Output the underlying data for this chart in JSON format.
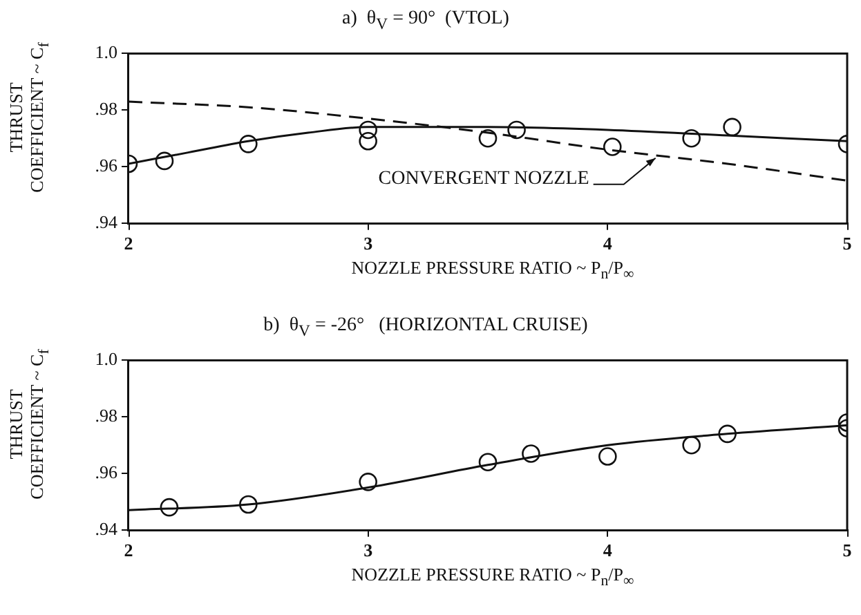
{
  "chart_data": [
    {
      "type": "scatter",
      "title": "a)  θ$_{V}$ = 90°  (VTOL)",
      "xlabel": "NOZZLE PRESSURE RATIO ~ P$_{n}$/P$_{∞}$",
      "ylabel": "THRUST\nCOEFFICIENT ~ C$_{f}$",
      "xlim": [
        2,
        5
      ],
      "xticks": [
        2,
        3,
        4,
        5
      ],
      "ylim": [
        0.94,
        1.0
      ],
      "yticks": [
        {
          "value": 0.94,
          "label": ".94"
        },
        {
          "value": 0.96,
          "label": ".96"
        },
        {
          "value": 0.98,
          "label": ".98"
        },
        {
          "value": 1.0,
          "label": "1.0"
        }
      ],
      "grid": false,
      "legend": false,
      "series": [
        {
          "marker": "circle",
          "color": "#111111",
          "x": [
            2,
            2.15,
            2.5,
            3,
            3,
            3.5,
            3.62,
            4.02,
            4.35,
            4.52,
            5
          ],
          "values": [
            0.961,
            0.962,
            0.968,
            0.973,
            0.969,
            0.97,
            0.973,
            0.967,
            0.97,
            0.974,
            0.968
          ]
        },
        {
          "type": "line",
          "marker": "none",
          "color": "#111111",
          "line_style": "solid",
          "x": [
            2,
            2.25,
            2.5,
            2.75,
            3,
            3.5,
            4,
            4.5,
            5
          ],
          "values": [
            0.961,
            0.965,
            0.969,
            0.972,
            0.974,
            0.974,
            0.973,
            0.971,
            0.969
          ]
        },
        {
          "type": "line",
          "marker": "none",
          "color": "#111111",
          "line_style": "dashed",
          "x": [
            2,
            2.5,
            3,
            3.5,
            4,
            4.5,
            5
          ],
          "values": [
            0.983,
            0.981,
            0.977,
            0.972,
            0.966,
            0.961,
            0.955
          ]
        }
      ],
      "annotations": [
        {
          "text": "CONVERGENT NOZZLE",
          "x": 4.2,
          "y": 0.963
        }
      ]
    },
    {
      "type": "scatter",
      "title": "b)  θ$_{V}$ = -26°   (HORIZONTAL CRUISE)",
      "xlabel": "NOZZLE PRESSURE RATIO ~ P$_{n}$/P$_{∞}$",
      "ylabel": "THRUST\nCOEFFICIENT ~ C$_{f}$",
      "xlim": [
        2,
        5
      ],
      "xticks": [
        2,
        3,
        4,
        5
      ],
      "ylim": [
        0.94,
        1.0
      ],
      "yticks": [
        {
          "value": 0.94,
          "label": ".94"
        },
        {
          "value": 0.96,
          "label": ".96"
        },
        {
          "value": 0.98,
          "label": ".98"
        },
        {
          "value": 1.0,
          "label": "1.0"
        }
      ],
      "grid": false,
      "legend": false,
      "series": [
        {
          "marker": "circle",
          "color": "#111111",
          "x": [
            2.17,
            2.5,
            3,
            3.5,
            3.68,
            4,
            4.35,
            4.5,
            5,
            5
          ],
          "values": [
            0.948,
            0.949,
            0.957,
            0.964,
            0.967,
            0.966,
            0.97,
            0.974,
            0.978,
            0.976
          ]
        },
        {
          "type": "line",
          "marker": "none",
          "color": "#111111",
          "line_style": "solid",
          "x": [
            2,
            2.5,
            3,
            3.5,
            4,
            4.5,
            5
          ],
          "values": [
            0.947,
            0.949,
            0.955,
            0.963,
            0.97,
            0.974,
            0.977
          ]
        }
      ]
    }
  ]
}
